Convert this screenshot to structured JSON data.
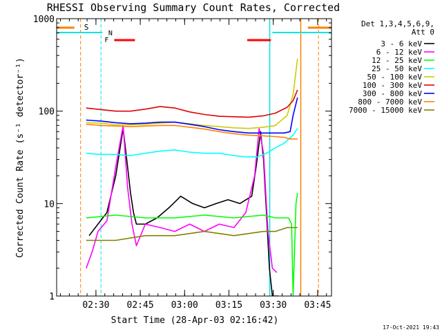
{
  "chart_data": {
    "type": "line",
    "title": "RHESSI Observing Summary Count Rates, Corrected",
    "xlabel": "Start Time (28-Apr-03 02:16:42)",
    "ylabel": "Corrected Count Rate (s⁻¹ detector⁻¹)",
    "y_scale": "log",
    "ylim": [
      1,
      1000
    ],
    "xlim_minutes_after_start": [
      0,
      93
    ],
    "x_ticks": [
      {
        "label": "02:30",
        "value": 13.3
      },
      {
        "label": "02:45",
        "value": 28.3
      },
      {
        "label": "03:00",
        "value": 43.3
      },
      {
        "label": "03:15",
        "value": 58.3
      },
      {
        "label": "03:30",
        "value": 73.3
      },
      {
        "label": "03:45",
        "value": 88.3
      }
    ],
    "y_ticks": [
      {
        "label": "1",
        "value": 1
      },
      {
        "label": "10",
        "value": 10
      },
      {
        "label": "100",
        "value": 100
      },
      {
        "label": "1000",
        "value": 1000
      }
    ],
    "legend_header": [
      "Det 1,3,4,5,6,9,",
      "Att 0"
    ],
    "legend_placement": "right",
    "footer_date": "17-Oct-2021 19:43",
    "flags": {
      "s_label": "S",
      "n_label": "N",
      "f_label": "F",
      "s_color": "#ff8000",
      "n_color": "#00e5e5",
      "f_color": "#ff0000"
    },
    "vertical_markers_minutes": {
      "cyan_dashed": 15.0,
      "orange_dashed_left": 8.1,
      "cyan_solid_right": 72.1,
      "orange_solid_right": 82.6,
      "orange_dashed_right": 88.6
    },
    "series": [
      {
        "name": "3 - 6 keV",
        "color": "#000000",
        "x": [
          11.0,
          14.0,
          17.0,
          20.0,
          22.5,
          24.0,
          25.0,
          26.0,
          27.0,
          30.0,
          34.0,
          38.0,
          42.0,
          46.0,
          50.0,
          54.0,
          58.0,
          62.0,
          66.0,
          67.5,
          69.0,
          70.0,
          71.0,
          72.0,
          73.0,
          75.0
        ],
        "y": [
          4.5,
          6.0,
          8.0,
          20.0,
          65.0,
          25.0,
          13.0,
          8.0,
          6.0,
          6.0,
          7.0,
          9.0,
          12.0,
          10.0,
          9.0,
          10.0,
          11.0,
          10.0,
          12.0,
          25.0,
          60.0,
          30.0,
          8.0,
          2.0,
          1.0,
          1.0
        ]
      },
      {
        "name": "6 - 12 keV",
        "color": "#ff00ff",
        "x": [
          10.0,
          12.0,
          14.0,
          17.0,
          20.0,
          22.5,
          24.0,
          25.5,
          27.0,
          30.0,
          35.0,
          40.0,
          45.0,
          50.0,
          55.0,
          60.0,
          64.0,
          67.0,
          68.5,
          70.0,
          71.5,
          73.0,
          74.5
        ],
        "y": [
          2.0,
          3.0,
          5.0,
          6.5,
          25.0,
          70.0,
          15.0,
          6.0,
          3.5,
          6.0,
          5.5,
          5.0,
          6.0,
          5.0,
          6.0,
          5.5,
          8.0,
          20.0,
          65.0,
          35.0,
          5.0,
          2.0,
          1.8
        ]
      },
      {
        "name": "12 - 25 keV",
        "color": "#00ff00",
        "x": [
          10.0,
          20.0,
          30.0,
          40.0,
          50.0,
          60.0,
          70.0,
          74.0,
          77.0,
          78.5,
          79.5,
          80.0,
          81.0,
          81.5
        ],
        "y": [
          7.0,
          7.5,
          7.0,
          7.0,
          7.5,
          7.0,
          7.5,
          7.0,
          7.0,
          7.0,
          6.0,
          1.0,
          10.0,
          13.0
        ]
      },
      {
        "name": "25 - 50 keV",
        "color": "#00ffff",
        "x": [
          10.0,
          15.0,
          20.0,
          25.0,
          30.0,
          35.0,
          40.0,
          45.0,
          50.0,
          55.0,
          60.0,
          64.0,
          68.0,
          71.0,
          74.0,
          77.0,
          80.0,
          81.5
        ],
        "y": [
          35.0,
          34.0,
          34.0,
          33.0,
          35.0,
          37.0,
          38.0,
          36.0,
          35.0,
          35.0,
          33.0,
          32.0,
          32.0,
          35.0,
          40.0,
          45.0,
          55.0,
          65.0
        ]
      },
      {
        "name": "50 - 100 keV",
        "color": "#cccc00",
        "x": [
          10.0,
          15.0,
          20.0,
          25.0,
          30.0,
          35.0,
          40.0,
          45.0,
          50.0,
          55.0,
          60.0,
          65.0,
          70.0,
          74.0,
          78.0,
          80.0,
          81.5
        ],
        "y": [
          75.0,
          74.0,
          71.0,
          71.0,
          72.0,
          74.0,
          76.0,
          73.0,
          70.0,
          68.0,
          66.0,
          65.0,
          67.0,
          70.0,
          90.0,
          150.0,
          370.0
        ]
      },
      {
        "name": "100 - 300 keV",
        "color": "#e00000",
        "x": [
          10.0,
          15.0,
          20.0,
          25.0,
          30.0,
          35.0,
          40.0,
          45.0,
          50.0,
          55.0,
          60.0,
          65.0,
          70.0,
          74.0,
          78.0,
          80.0,
          81.5
        ],
        "y": [
          108.0,
          104.0,
          100.0,
          100.0,
          105.0,
          112.0,
          108.0,
          98.0,
          92.0,
          88.0,
          87.0,
          86.0,
          89.0,
          95.0,
          110.0,
          130.0,
          170.0
        ]
      },
      {
        "name": "300 - 800 keV",
        "color": "#0000ff",
        "x": [
          10.0,
          15.0,
          20.0,
          25.0,
          30.0,
          35.0,
          40.0,
          45.0,
          50.0,
          55.0,
          60.0,
          65.0,
          70.0,
          74.0,
          77.0,
          79.0,
          80.0,
          81.5
        ],
        "y": [
          80.0,
          78.0,
          75.0,
          73.0,
          74.0,
          76.0,
          76.0,
          72.0,
          68.0,
          63.0,
          60.0,
          58.0,
          58.0,
          58.0,
          58.0,
          60.0,
          90.0,
          140.0
        ]
      },
      {
        "name": "800 - 7000 keV",
        "color": "#ff8000",
        "x": [
          10.0,
          15.0,
          20.0,
          25.0,
          30.0,
          35.0,
          40.0,
          45.0,
          50.0,
          55.0,
          60.0,
          65.0,
          70.0,
          74.0,
          77.0,
          79.0,
          81.5
        ],
        "y": [
          72.0,
          70.0,
          69.0,
          68.0,
          69.0,
          70.0,
          70.0,
          67.0,
          64.0,
          60.0,
          57.0,
          55.0,
          54.0,
          53.0,
          52.0,
          50.0,
          50.0
        ]
      },
      {
        "name": "7000 - 15000 keV",
        "color": "#808000",
        "x": [
          10.0,
          20.0,
          30.0,
          40.0,
          50.0,
          60.0,
          70.0,
          74.0,
          78.0,
          81.5
        ],
        "y": [
          4.0,
          4.0,
          4.5,
          4.5,
          5.0,
          4.5,
          5.0,
          5.0,
          5.5,
          5.5
        ]
      }
    ]
  }
}
